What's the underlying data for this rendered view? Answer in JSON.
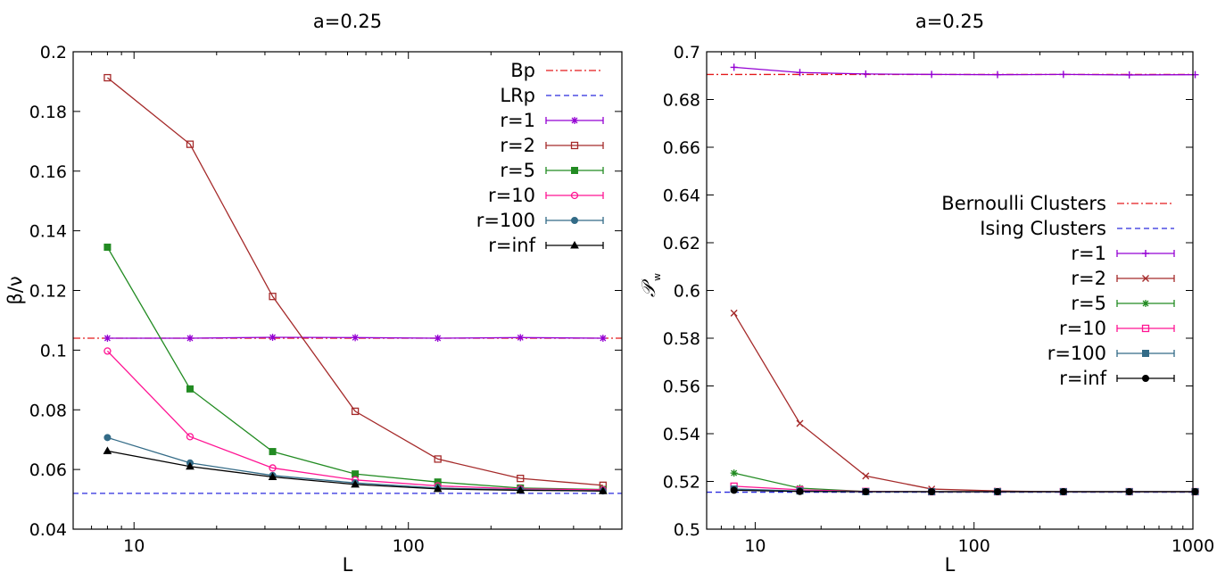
{
  "chart_data": [
    {
      "type": "line",
      "title": "a=0.25",
      "xlabel": "L",
      "ylabel": "β/ν",
      "xscale": "log",
      "xlim": [
        6,
        600
      ],
      "ylim": [
        0.04,
        0.2
      ],
      "xticks": [
        10,
        100
      ],
      "xtick_labels": [
        "10",
        "100"
      ],
      "yticks": [
        0.04,
        0.06,
        0.08,
        0.1,
        0.12,
        0.14,
        0.16,
        0.18,
        0.2
      ],
      "ytick_labels": [
        "0.04",
        "0.06",
        "0.08",
        "0.1",
        "0.12",
        "0.14",
        "0.16",
        "0.18",
        "0.2"
      ],
      "legend_position": "top-right",
      "reference_lines": [
        {
          "name": "Bp",
          "value": 0.104,
          "color": "#e41a1c",
          "style": "dashdot"
        },
        {
          "name": "LRp",
          "value": 0.052,
          "color": "#2b2bdd",
          "style": "dashed"
        }
      ],
      "x": [
        8,
        16,
        32,
        64,
        128,
        256,
        512
      ],
      "series": [
        {
          "name": "r=1",
          "color": "#9400d3",
          "marker": "star",
          "values": [
            0.104,
            0.104,
            0.1043,
            0.1042,
            0.104,
            0.1042,
            0.104
          ]
        },
        {
          "name": "r=2",
          "color": "#a52a2a",
          "marker": "open-square",
          "values": [
            0.1913,
            0.169,
            0.118,
            0.0795,
            0.0635,
            0.057,
            0.0547
          ]
        },
        {
          "name": "r=5",
          "color": "#228b22",
          "marker": "filled-square",
          "values": [
            0.1345,
            0.087,
            0.066,
            0.0585,
            0.0558,
            0.0538,
            0.0533
          ]
        },
        {
          "name": "r=10",
          "color": "#ff1493",
          "marker": "open-circle",
          "values": [
            0.0997,
            0.071,
            0.0605,
            0.0565,
            0.0545,
            0.0535,
            0.0532
          ]
        },
        {
          "name": "r=100",
          "color": "#336b87",
          "marker": "filled-circle",
          "values": [
            0.0707,
            0.0622,
            0.058,
            0.0555,
            0.0538,
            0.0532,
            0.0528
          ]
        },
        {
          "name": "r=inf",
          "color": "#000000",
          "marker": "filled-triangle",
          "values": [
            0.0662,
            0.061,
            0.0575,
            0.055,
            0.0535,
            0.053,
            0.0528
          ]
        }
      ]
    },
    {
      "type": "line",
      "title": "a=0.25",
      "xlabel": "L",
      "ylabel": "𝒫",
      "ylabel_subscript": "w",
      "xscale": "log",
      "xlim": [
        6,
        1000
      ],
      "ylim": [
        0.5,
        0.7
      ],
      "xticks": [
        10,
        100,
        1000
      ],
      "xtick_labels": [
        "10",
        "100",
        "1000"
      ],
      "yticks": [
        0.5,
        0.52,
        0.54,
        0.56,
        0.58,
        0.6,
        0.62,
        0.64,
        0.66,
        0.68,
        0.7
      ],
      "ytick_labels": [
        "0.5",
        "0.52",
        "0.54",
        "0.56",
        "0.58",
        "0.6",
        "0.62",
        "0.64",
        "0.66",
        "0.68",
        "0.7"
      ],
      "legend_position": "center-right",
      "reference_lines": [
        {
          "name": "Bernoulli Clusters",
          "value": 0.6905,
          "color": "#e41a1c",
          "style": "dashdot"
        },
        {
          "name": "Ising Clusters",
          "value": 0.5155,
          "color": "#2b2bdd",
          "style": "dashed"
        }
      ],
      "x": [
        8,
        16,
        32,
        64,
        128,
        256,
        512,
        1024
      ],
      "series": [
        {
          "name": "r=1",
          "color": "#9400d3",
          "marker": "plus",
          "values": [
            0.6935,
            0.6913,
            0.6907,
            0.6905,
            0.6904,
            0.6905,
            0.6903,
            0.6904
          ]
        },
        {
          "name": "r=2",
          "color": "#a52a2a",
          "marker": "cross",
          "values": [
            0.5905,
            0.5443,
            0.5223,
            0.5168,
            0.516,
            0.5157,
            0.5157,
            0.5157
          ]
        },
        {
          "name": "r=5",
          "color": "#228b22",
          "marker": "star",
          "values": [
            0.5235,
            0.5172,
            0.5158,
            0.5157,
            0.5157,
            0.5157,
            0.5157,
            0.5157
          ]
        },
        {
          "name": "r=10",
          "color": "#ff1493",
          "marker": "open-square",
          "values": [
            0.518,
            0.5165,
            0.5158,
            0.5157,
            0.5157,
            0.5157,
            0.5157,
            0.5157
          ]
        },
        {
          "name": "r=100",
          "color": "#336b87",
          "marker": "filled-square",
          "values": [
            0.5168,
            0.516,
            0.5157,
            0.5157,
            0.5157,
            0.5157,
            0.5157,
            0.5157
          ]
        },
        {
          "name": "r=inf",
          "color": "#000000",
          "marker": "filled-circle",
          "values": [
            0.5163,
            0.5158,
            0.5157,
            0.5157,
            0.5157,
            0.5157,
            0.5157,
            0.5157
          ]
        }
      ]
    }
  ]
}
